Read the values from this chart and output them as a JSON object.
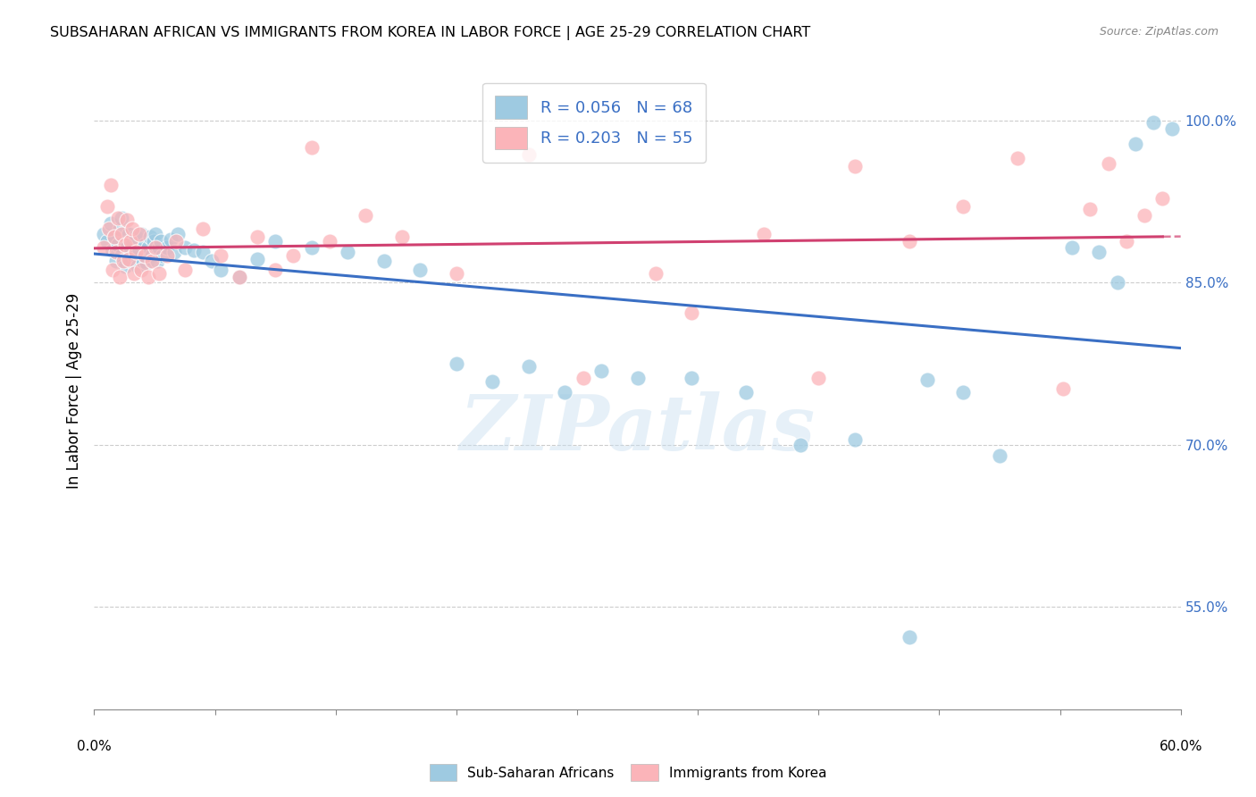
{
  "title": "SUBSAHARAN AFRICAN VS IMMIGRANTS FROM KOREA IN LABOR FORCE | AGE 25-29 CORRELATION CHART",
  "source": "Source: ZipAtlas.com",
  "ylabel": "In Labor Force | Age 25-29",
  "legend_label_blue": "Sub-Saharan Africans",
  "legend_label_pink": "Immigrants from Korea",
  "R_blue": 0.056,
  "N_blue": 68,
  "R_pink": 0.203,
  "N_pink": 55,
  "color_blue": "#9ecae1",
  "color_pink": "#fbb4b9",
  "trendline_blue": "#3a6fc4",
  "trendline_pink": "#d04070",
  "watermark_color": "#c8dff0",
  "watermark": "ZIPatlas",
  "xmin": 0.0,
  "xmax": 0.6,
  "ymin": 0.455,
  "ymax": 1.045,
  "right_ytick_values": [
    1.0,
    0.85,
    0.7,
    0.55
  ],
  "right_ytick_labels": [
    "100.0%",
    "85.0%",
    "70.0%",
    "55.0%"
  ],
  "grid_lines": [
    1.0,
    0.85,
    0.7,
    0.55
  ],
  "blue_points_x": [
    0.005,
    0.007,
    0.009,
    0.01,
    0.011,
    0.012,
    0.013,
    0.014,
    0.015,
    0.015,
    0.017,
    0.018,
    0.019,
    0.02,
    0.021,
    0.022,
    0.023,
    0.024,
    0.025,
    0.026,
    0.027,
    0.028,
    0.029,
    0.03,
    0.031,
    0.032,
    0.033,
    0.034,
    0.035,
    0.036,
    0.037,
    0.038,
    0.04,
    0.042,
    0.044,
    0.046,
    0.05,
    0.055,
    0.06,
    0.065,
    0.07,
    0.08,
    0.09,
    0.1,
    0.12,
    0.14,
    0.16,
    0.18,
    0.2,
    0.22,
    0.24,
    0.26,
    0.28,
    0.3,
    0.33,
    0.36,
    0.39,
    0.42,
    0.45,
    0.46,
    0.48,
    0.5,
    0.54,
    0.555,
    0.565,
    0.575,
    0.585,
    0.595
  ],
  "blue_points_y": [
    0.895,
    0.888,
    0.905,
    0.88,
    0.892,
    0.87,
    0.885,
    0.9,
    0.875,
    0.91,
    0.865,
    0.882,
    0.895,
    0.87,
    0.888,
    0.875,
    0.892,
    0.865,
    0.88,
    0.895,
    0.87,
    0.885,
    0.868,
    0.882,
    0.892,
    0.875,
    0.888,
    0.895,
    0.87,
    0.882,
    0.888,
    0.875,
    0.882,
    0.89,
    0.878,
    0.895,
    0.882,
    0.88,
    0.878,
    0.87,
    0.862,
    0.855,
    0.872,
    0.888,
    0.882,
    0.878,
    0.87,
    0.862,
    0.775,
    0.758,
    0.772,
    0.748,
    0.768,
    0.762,
    0.762,
    0.748,
    0.7,
    0.705,
    0.522,
    0.76,
    0.748,
    0.69,
    0.882,
    0.878,
    0.85,
    0.978,
    0.998,
    0.992
  ],
  "pink_points_x": [
    0.005,
    0.007,
    0.008,
    0.009,
    0.01,
    0.011,
    0.012,
    0.013,
    0.014,
    0.015,
    0.016,
    0.017,
    0.018,
    0.019,
    0.02,
    0.021,
    0.022,
    0.023,
    0.025,
    0.026,
    0.028,
    0.03,
    0.032,
    0.034,
    0.036,
    0.04,
    0.045,
    0.05,
    0.06,
    0.07,
    0.08,
    0.09,
    0.1,
    0.11,
    0.12,
    0.13,
    0.15,
    0.17,
    0.2,
    0.24,
    0.27,
    0.31,
    0.33,
    0.37,
    0.4,
    0.42,
    0.45,
    0.48,
    0.51,
    0.535,
    0.55,
    0.56,
    0.57,
    0.58,
    0.59
  ],
  "pink_points_y": [
    0.882,
    0.92,
    0.9,
    0.94,
    0.862,
    0.892,
    0.878,
    0.91,
    0.855,
    0.895,
    0.87,
    0.885,
    0.908,
    0.872,
    0.888,
    0.9,
    0.858,
    0.878,
    0.895,
    0.862,
    0.875,
    0.855,
    0.87,
    0.882,
    0.858,
    0.875,
    0.888,
    0.862,
    0.9,
    0.875,
    0.855,
    0.892,
    0.862,
    0.875,
    0.975,
    0.888,
    0.912,
    0.892,
    0.858,
    0.968,
    0.762,
    0.858,
    0.822,
    0.895,
    0.762,
    0.958,
    0.888,
    0.92,
    0.965,
    0.752,
    0.918,
    0.96,
    0.888,
    0.912,
    0.928
  ]
}
